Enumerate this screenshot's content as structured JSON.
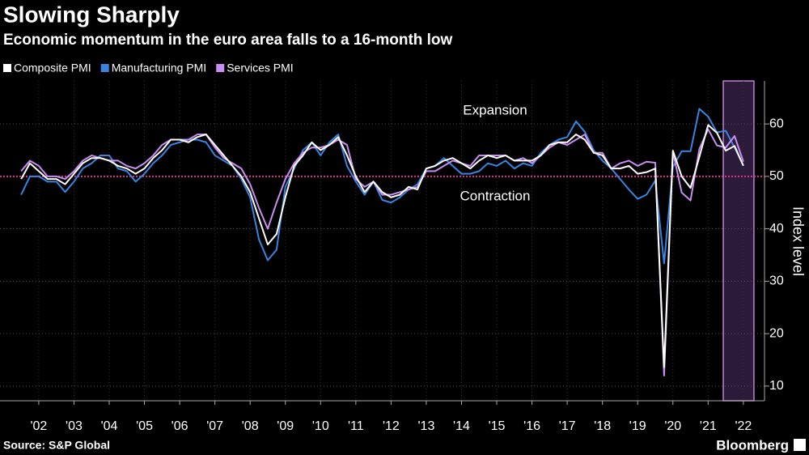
{
  "chart_data": {
    "type": "line",
    "title": "Slowing Sharply",
    "subtitle": "Economic momentum in the euro area falls to a 16-month low",
    "y_axis_label": "Index level",
    "source": "Source: S&P Global",
    "brand": "Bloomberg",
    "reference_line": {
      "value": 50,
      "color": "#e0338f"
    },
    "annotations": [
      {
        "text": "Expansion",
        "color": "#e0338f"
      },
      {
        "text": "Contraction",
        "color": "#e0338f"
      }
    ],
    "highlight_span": {
      "x": [
        2021.93,
        2022.8
      ],
      "fill": "#2b1a38",
      "stroke": "#c080d8"
    },
    "grid": true,
    "xlim": [
      2001.4,
      2023.1
    ],
    "ylim": [
      7.2,
      68.2
    ],
    "yticks": [
      10,
      20,
      30,
      40,
      50,
      60
    ],
    "xticks": [
      {
        "value": 2002.5,
        "label": "'02"
      },
      {
        "value": 2003.5,
        "label": "'03"
      },
      {
        "value": 2004.5,
        "label": "'04"
      },
      {
        "value": 2005.5,
        "label": "'05"
      },
      {
        "value": 2006.5,
        "label": "'06"
      },
      {
        "value": 2007.5,
        "label": "'07"
      },
      {
        "value": 2008.5,
        "label": "'08"
      },
      {
        "value": 2009.5,
        "label": "'09"
      },
      {
        "value": 2010.5,
        "label": "'10"
      },
      {
        "value": 2011.5,
        "label": "'11"
      },
      {
        "value": 2012.5,
        "label": "'12"
      },
      {
        "value": 2013.5,
        "label": "'13"
      },
      {
        "value": 2014.5,
        "label": "'14"
      },
      {
        "value": 2015.5,
        "label": "'15"
      },
      {
        "value": 2016.5,
        "label": "'16"
      },
      {
        "value": 2017.5,
        "label": "'17"
      },
      {
        "value": 2018.5,
        "label": "'18"
      },
      {
        "value": 2019.5,
        "label": "'19"
      },
      {
        "value": 2020.5,
        "label": "'20"
      },
      {
        "value": 2021.5,
        "label": "'21"
      },
      {
        "value": 2022.5,
        "label": "'22"
      }
    ],
    "x": [
      2002,
      2002.25,
      2002.5,
      2002.75,
      2003,
      2003.25,
      2003.5,
      2003.75,
      2004,
      2004.25,
      2004.5,
      2004.75,
      2005,
      2005.25,
      2005.5,
      2005.75,
      2006,
      2006.25,
      2006.5,
      2006.75,
      2007,
      2007.25,
      2007.5,
      2007.75,
      2008,
      2008.25,
      2008.5,
      2008.75,
      2009,
      2009.25,
      2009.5,
      2009.75,
      2010,
      2010.25,
      2010.5,
      2010.75,
      2011,
      2011.25,
      2011.5,
      2011.75,
      2012,
      2012.25,
      2012.5,
      2012.75,
      2013,
      2013.25,
      2013.5,
      2013.75,
      2014,
      2014.25,
      2014.5,
      2014.75,
      2015,
      2015.25,
      2015.5,
      2015.75,
      2016,
      2016.25,
      2016.5,
      2016.75,
      2017,
      2017.25,
      2017.5,
      2017.75,
      2018,
      2018.25,
      2018.5,
      2018.75,
      2019,
      2019.25,
      2019.5,
      2019.75,
      2020,
      2020.25,
      2020.5,
      2020.75,
      2021,
      2021.25,
      2021.5,
      2021.75,
      2022,
      2022.25,
      2022.5
    ],
    "series": [
      {
        "name": "Composite PMI",
        "color": "#ffffff",
        "values": [
          49.5,
          52.5,
          51,
          49.5,
          49.5,
          48.5,
          50.5,
          52.5,
          53.5,
          53.5,
          53,
          52,
          51.5,
          50.5,
          51.5,
          53.5,
          55,
          57,
          57,
          56.5,
          57.5,
          58,
          56,
          54,
          52,
          50,
          47,
          42,
          37,
          39,
          46,
          52,
          54,
          56.5,
          55,
          56,
          57.5,
          54,
          50,
          47,
          49,
          47,
          46,
          46.5,
          48,
          47.5,
          51.5,
          52,
          53,
          53.5,
          52.5,
          51.5,
          53,
          54,
          53.5,
          54,
          53,
          53,
          53,
          54,
          56,
          56.5,
          56.5,
          58,
          57,
          54.5,
          54,
          51.5,
          51.5,
          52,
          50.5,
          50.8,
          51.5,
          13.6,
          54.9,
          50,
          47.8,
          53.7,
          59.8,
          58.3,
          54.9,
          55.8,
          52
        ]
      },
      {
        "name": "Manufacturing PMI",
        "color": "#3a84e0",
        "values": [
          46.5,
          50,
          50,
          49,
          49,
          47,
          49,
          51.5,
          52.5,
          54,
          54,
          51.5,
          51,
          49,
          50.5,
          52.5,
          54,
          56,
          56.5,
          57,
          57,
          56.5,
          54,
          53,
          52,
          49.5,
          46,
          38,
          34,
          36,
          48,
          51.5,
          55,
          56.5,
          54,
          56.5,
          58,
          52,
          49,
          46.5,
          49,
          45.5,
          45,
          46,
          47.5,
          48.5,
          51.5,
          52,
          53.5,
          52,
          50.5,
          50.5,
          51,
          52.5,
          52,
          53,
          51.5,
          52.5,
          52,
          54.5,
          56,
          57,
          57.5,
          60.5,
          58.5,
          55,
          53,
          51.5,
          49.5,
          47.5,
          45.7,
          46.5,
          49.2,
          33.4,
          51.8,
          54.8,
          54.8,
          62.9,
          61.4,
          58.4,
          58.7,
          55.5,
          52.1
        ]
      },
      {
        "name": "Services PMI",
        "color": "#c98ef2",
        "values": [
          51,
          53,
          52,
          50,
          50,
          49.5,
          51,
          53,
          54,
          53.5,
          53,
          53,
          52,
          51.5,
          52.5,
          54,
          56,
          57,
          57,
          57,
          58,
          58,
          55.5,
          53.5,
          52.5,
          51.5,
          48.5,
          44,
          40,
          45,
          49.5,
          52.5,
          54.5,
          55.5,
          55.5,
          56,
          57,
          56,
          49.5,
          48,
          49,
          46.5,
          46.5,
          47,
          47.5,
          48,
          51,
          51,
          52,
          53,
          52.5,
          52,
          54,
          54,
          54,
          54,
          53,
          53.5,
          52.5,
          54,
          55.5,
          56.5,
          56,
          57,
          58,
          54.5,
          54.5,
          51.5,
          52.5,
          53,
          52,
          52.8,
          52.6,
          12,
          54.7,
          46.9,
          45.4,
          55.2,
          59,
          55.9,
          55.5,
          57.7,
          52.8
        ]
      }
    ]
  }
}
